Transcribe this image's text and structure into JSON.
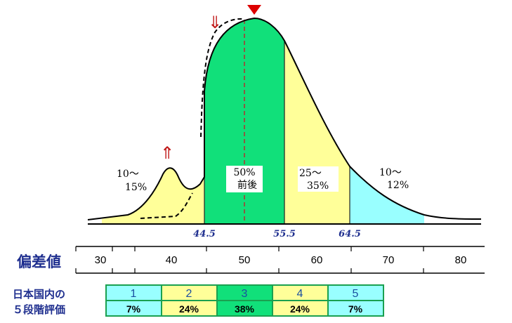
{
  "regions": [
    {
      "label_lines": [
        "10～",
        "15%"
      ],
      "color": "#ffff99"
    },
    {
      "label_lines": [
        "50%",
        "前後"
      ],
      "color": "#11e07a"
    },
    {
      "label_lines": [
        "25～",
        "35%"
      ],
      "color": "#ffff99"
    },
    {
      "label_lines": [
        "10～",
        "12%"
      ],
      "color": "#99ffff"
    }
  ],
  "boundaries": [
    "44.5",
    "55.5",
    "64.5"
  ],
  "axis": {
    "title": "偏差値",
    "ticks": [
      "30",
      "40",
      "50",
      "60",
      "70",
      "80"
    ]
  },
  "arrows": {
    "up": "⇑",
    "down": "⇓",
    "peak_marker_color": "#dd0000"
  },
  "evaluation": {
    "title_lines": [
      "日本国内の",
      "５段階評価"
    ],
    "grades": [
      {
        "grade": "1",
        "percent": "7%",
        "color": "#99ffff"
      },
      {
        "grade": "2",
        "percent": "24%",
        "color": "#ffff99"
      },
      {
        "grade": "3",
        "percent": "38%",
        "color": "#11e07a"
      },
      {
        "grade": "4",
        "percent": "24%",
        "color": "#ffff99"
      },
      {
        "grade": "5",
        "percent": "7%",
        "color": "#99ffff"
      }
    ],
    "border_color": "#1aa050"
  }
}
